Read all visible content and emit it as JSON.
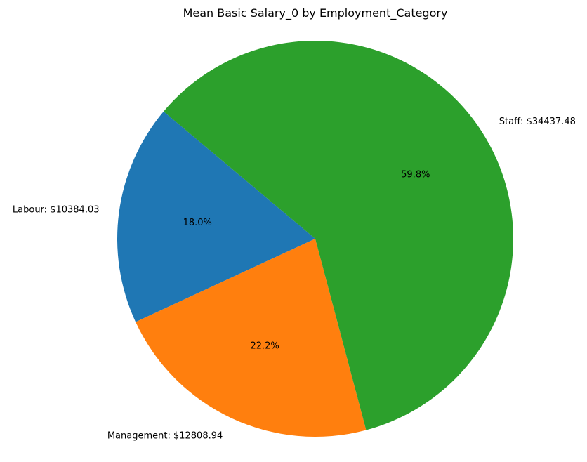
{
  "chart_data": {
    "type": "pie",
    "title": "Mean Basic Salary_0 by Employment_Category",
    "categories": [
      "Labour",
      "Management",
      "Staff"
    ],
    "values": [
      10384.03,
      12808.94,
      34437.48
    ],
    "labels": [
      "Labour: $10384.03",
      "Management: $12808.94",
      "Staff: $34437.48"
    ],
    "percent_labels": [
      "18.0%",
      "22.2%",
      "59.8%"
    ],
    "colors": [
      "#1f77b4",
      "#ff7f0e",
      "#2ca02c"
    ],
    "start_angle_deg": 140,
    "direction": "counterclockwise"
  }
}
